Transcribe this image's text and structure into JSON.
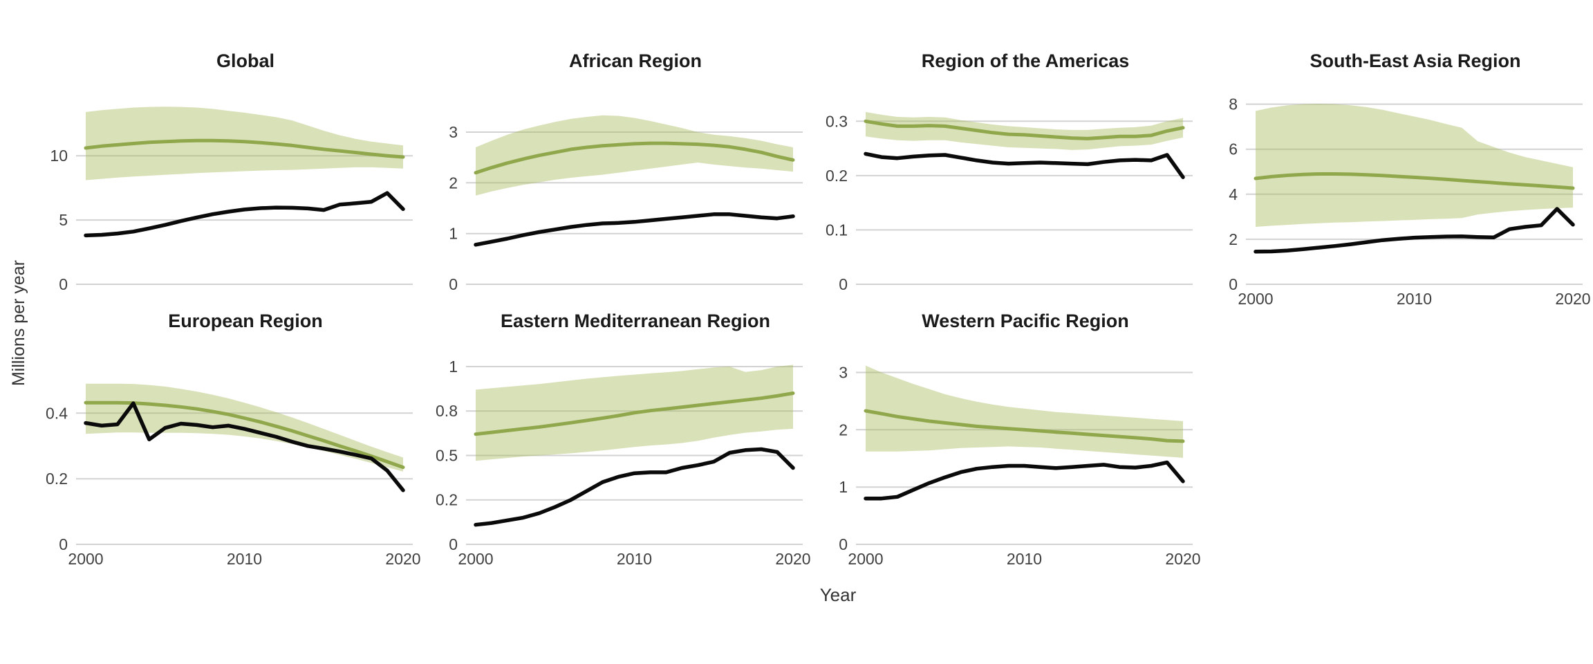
{
  "figure": {
    "ylabel": "Millions per year",
    "xlabel": "Year"
  },
  "colors": {
    "estimate_line": "#90a74c",
    "confidence_band": "rgba(164,184,87,0.42)",
    "observed_line": "#0a0a0a",
    "gridline": "#d2d2d2",
    "title_text": "#1a1a1a",
    "tick_text": "#404040"
  },
  "chart_data": {
    "type": "line",
    "description": "Faceted time-series: green line = estimated value with shaded confidence band (ci_low/ci_high), black line = observed value, 2000-2020, millions per year",
    "x": [
      2000,
      2001,
      2002,
      2003,
      2004,
      2005,
      2006,
      2007,
      2008,
      2009,
      2010,
      2011,
      2012,
      2013,
      2014,
      2015,
      2016,
      2017,
      2018,
      2019,
      2020
    ],
    "xticks": [
      2000,
      2010,
      2020
    ],
    "xlabel": "Year",
    "ylabel": "Millions per year",
    "grid": "horizontal-major-only",
    "legend": "none",
    "panels": [
      {
        "title": "Global",
        "ylim": [
          0,
          14.8
        ],
        "yticks": [
          {
            "v": 0,
            "label": "0"
          },
          {
            "v": 5,
            "label": "5"
          },
          {
            "v": 10,
            "label": "10"
          }
        ],
        "show_x_labels": false,
        "series": {
          "estimate": [
            10.6,
            10.75,
            10.85,
            10.95,
            11.05,
            11.1,
            11.15,
            11.18,
            11.18,
            11.15,
            11.1,
            11.02,
            10.92,
            10.8,
            10.65,
            10.5,
            10.38,
            10.25,
            10.12,
            10.0,
            9.9
          ],
          "ci_high": [
            13.4,
            13.55,
            13.65,
            13.75,
            13.8,
            13.82,
            13.8,
            13.75,
            13.65,
            13.5,
            13.35,
            13.18,
            13.0,
            12.75,
            12.35,
            11.95,
            11.6,
            11.32,
            11.1,
            10.95,
            10.8
          ],
          "ci_low": [
            8.1,
            8.2,
            8.3,
            8.38,
            8.45,
            8.52,
            8.58,
            8.65,
            8.7,
            8.75,
            8.8,
            8.85,
            8.88,
            8.9,
            8.95,
            9.0,
            9.05,
            9.1,
            9.1,
            9.05,
            9.0
          ],
          "observed": [
            3.8,
            3.85,
            3.95,
            4.1,
            4.35,
            4.62,
            4.92,
            5.2,
            5.45,
            5.65,
            5.82,
            5.92,
            5.97,
            5.95,
            5.9,
            5.78,
            6.2,
            6.3,
            6.42,
            7.1,
            5.85
          ]
        }
      },
      {
        "title": "African Region",
        "ylim": [
          0,
          3.75
        ],
        "yticks": [
          {
            "v": 0,
            "label": "0"
          },
          {
            "v": 1,
            "label": "1"
          },
          {
            "v": 2,
            "label": "2"
          },
          {
            "v": 3,
            "label": "3"
          }
        ],
        "show_x_labels": false,
        "series": {
          "estimate": [
            2.2,
            2.3,
            2.39,
            2.47,
            2.54,
            2.6,
            2.66,
            2.7,
            2.73,
            2.75,
            2.77,
            2.78,
            2.78,
            2.77,
            2.76,
            2.74,
            2.71,
            2.66,
            2.6,
            2.52,
            2.45
          ],
          "ci_high": [
            2.7,
            2.83,
            2.95,
            3.05,
            3.13,
            3.2,
            3.26,
            3.3,
            3.33,
            3.32,
            3.28,
            3.22,
            3.15,
            3.08,
            3.0,
            2.95,
            2.92,
            2.88,
            2.83,
            2.76,
            2.7
          ],
          "ci_low": [
            1.75,
            1.83,
            1.9,
            1.96,
            2.01,
            2.06,
            2.1,
            2.13,
            2.16,
            2.2,
            2.24,
            2.28,
            2.32,
            2.36,
            2.4,
            2.36,
            2.33,
            2.3,
            2.28,
            2.25,
            2.22
          ],
          "observed": [
            0.78,
            0.84,
            0.9,
            0.97,
            1.03,
            1.08,
            1.13,
            1.17,
            1.2,
            1.21,
            1.23,
            1.26,
            1.29,
            1.32,
            1.35,
            1.38,
            1.38,
            1.35,
            1.32,
            1.3,
            1.34
          ]
        }
      },
      {
        "title": "Region of the Americas",
        "ylim": [
          0,
          0.35
        ],
        "yticks": [
          {
            "v": 0,
            "label": "0"
          },
          {
            "v": 0.1,
            "label": "0.1"
          },
          {
            "v": 0.2,
            "label": "0.2"
          },
          {
            "v": 0.3,
            "label": "0.3"
          }
        ],
        "show_x_labels": false,
        "series": {
          "estimate": [
            0.3,
            0.295,
            0.291,
            0.291,
            0.292,
            0.291,
            0.287,
            0.283,
            0.279,
            0.276,
            0.275,
            0.273,
            0.271,
            0.269,
            0.268,
            0.27,
            0.272,
            0.272,
            0.274,
            0.282,
            0.288
          ],
          "ci_high": [
            0.317,
            0.312,
            0.308,
            0.307,
            0.308,
            0.307,
            0.302,
            0.298,
            0.294,
            0.291,
            0.289,
            0.287,
            0.285,
            0.284,
            0.284,
            0.286,
            0.288,
            0.289,
            0.292,
            0.3,
            0.306
          ],
          "ci_low": [
            0.272,
            0.268,
            0.265,
            0.264,
            0.265,
            0.265,
            0.261,
            0.258,
            0.255,
            0.252,
            0.251,
            0.25,
            0.249,
            0.247,
            0.248,
            0.251,
            0.254,
            0.255,
            0.257,
            0.264,
            0.27
          ],
          "observed": [
            0.24,
            0.234,
            0.232,
            0.235,
            0.237,
            0.238,
            0.233,
            0.228,
            0.224,
            0.222,
            0.223,
            0.224,
            0.223,
            0.222,
            0.221,
            0.225,
            0.228,
            0.229,
            0.228,
            0.238,
            0.197
          ]
        }
      },
      {
        "title": "South-East Asia Region",
        "ylim": [
          0,
          8.45
        ],
        "yticks": [
          {
            "v": 0,
            "label": "0"
          },
          {
            "v": 2,
            "label": "2"
          },
          {
            "v": 4,
            "label": "4"
          },
          {
            "v": 6,
            "label": "6"
          },
          {
            "v": 8,
            "label": "8"
          }
        ],
        "show_x_labels": true,
        "series": {
          "estimate": [
            4.7,
            4.78,
            4.84,
            4.88,
            4.9,
            4.9,
            4.89,
            4.86,
            4.83,
            4.79,
            4.75,
            4.71,
            4.66,
            4.61,
            4.56,
            4.51,
            4.46,
            4.42,
            4.37,
            4.32,
            4.27
          ],
          "ci_high": [
            7.7,
            7.85,
            7.95,
            8.0,
            8.02,
            8.0,
            7.95,
            7.87,
            7.75,
            7.6,
            7.45,
            7.3,
            7.12,
            6.95,
            6.35,
            6.1,
            5.85,
            5.65,
            5.5,
            5.35,
            5.2
          ],
          "ci_low": [
            2.55,
            2.6,
            2.64,
            2.68,
            2.71,
            2.74,
            2.76,
            2.79,
            2.81,
            2.84,
            2.86,
            2.89,
            2.91,
            2.94,
            3.1,
            3.18,
            3.25,
            3.3,
            3.34,
            3.38,
            3.4
          ],
          "observed": [
            1.45,
            1.46,
            1.5,
            1.56,
            1.63,
            1.7,
            1.78,
            1.87,
            1.96,
            2.02,
            2.07,
            2.1,
            2.12,
            2.13,
            2.1,
            2.08,
            2.45,
            2.55,
            2.62,
            3.35,
            2.65
          ]
        }
      },
      {
        "title": "European Region",
        "ylim": [
          0,
          0.58
        ],
        "yticks": [
          {
            "v": 0,
            "label": "0"
          },
          {
            "v": 0.2,
            "label": "0.2"
          },
          {
            "v": 0.4,
            "label": "0.4"
          }
        ],
        "show_x_labels": true,
        "series": {
          "estimate": [
            0.432,
            0.432,
            0.432,
            0.431,
            0.428,
            0.424,
            0.419,
            0.413,
            0.405,
            0.396,
            0.385,
            0.373,
            0.36,
            0.346,
            0.331,
            0.316,
            0.3,
            0.285,
            0.269,
            0.252,
            0.235
          ],
          "ci_high": [
            0.49,
            0.49,
            0.49,
            0.489,
            0.486,
            0.481,
            0.474,
            0.466,
            0.456,
            0.445,
            0.432,
            0.418,
            0.403,
            0.387,
            0.37,
            0.352,
            0.334,
            0.316,
            0.298,
            0.281,
            0.265
          ],
          "ci_low": [
            0.337,
            0.339,
            0.341,
            0.341,
            0.34,
            0.34,
            0.34,
            0.339,
            0.337,
            0.334,
            0.329,
            0.323,
            0.315,
            0.306,
            0.296,
            0.285,
            0.273,
            0.261,
            0.248,
            0.235,
            0.222
          ],
          "observed": [
            0.37,
            0.362,
            0.366,
            0.43,
            0.32,
            0.355,
            0.368,
            0.364,
            0.357,
            0.362,
            0.352,
            0.34,
            0.328,
            0.313,
            0.3,
            0.292,
            0.283,
            0.273,
            0.262,
            0.225,
            0.165
          ]
        }
      },
      {
        "title": "Eastern Mediterranean Region",
        "ylim": [
          0,
          1.07
        ],
        "yticks": [
          {
            "v": 0,
            "label": "0"
          },
          {
            "v": 0.25,
            "label": "0.2"
          },
          {
            "v": 0.5,
            "label": "0.5"
          },
          {
            "v": 0.75,
            "label": "0.8"
          },
          {
            "v": 1,
            "label": "1"
          }
        ],
        "show_x_labels": true,
        "series": {
          "estimate": [
            0.62,
            0.63,
            0.64,
            0.65,
            0.66,
            0.672,
            0.684,
            0.697,
            0.71,
            0.724,
            0.74,
            0.752,
            0.762,
            0.772,
            0.782,
            0.792,
            0.802,
            0.812,
            0.822,
            0.835,
            0.85
          ],
          "ci_high": [
            0.87,
            0.878,
            0.886,
            0.894,
            0.902,
            0.912,
            0.922,
            0.932,
            0.94,
            0.948,
            0.955,
            0.962,
            0.968,
            0.975,
            0.985,
            0.995,
            1.0,
            0.97,
            0.98,
            1.0,
            1.01
          ],
          "ci_low": [
            0.47,
            0.478,
            0.486,
            0.494,
            0.5,
            0.506,
            0.512,
            0.52,
            0.528,
            0.538,
            0.548,
            0.556,
            0.562,
            0.57,
            0.582,
            0.6,
            0.615,
            0.628,
            0.635,
            0.645,
            0.65
          ],
          "observed": [
            0.11,
            0.12,
            0.135,
            0.15,
            0.175,
            0.21,
            0.25,
            0.3,
            0.35,
            0.38,
            0.4,
            0.405,
            0.405,
            0.43,
            0.445,
            0.465,
            0.515,
            0.53,
            0.535,
            0.52,
            0.43
          ]
        }
      },
      {
        "title": "Western Pacific Region",
        "ylim": [
          0,
          3.32
        ],
        "yticks": [
          {
            "v": 0,
            "label": "0"
          },
          {
            "v": 1,
            "label": "1"
          },
          {
            "v": 2,
            "label": "2"
          },
          {
            "v": 3,
            "label": "3"
          }
        ],
        "show_x_labels": true,
        "series": {
          "estimate": [
            2.33,
            2.28,
            2.23,
            2.19,
            2.15,
            2.12,
            2.09,
            2.06,
            2.04,
            2.02,
            2.0,
            1.98,
            1.96,
            1.94,
            1.92,
            1.9,
            1.88,
            1.86,
            1.84,
            1.81,
            1.8
          ],
          "ci_high": [
            3.12,
            3.0,
            2.9,
            2.8,
            2.71,
            2.62,
            2.55,
            2.49,
            2.44,
            2.4,
            2.37,
            2.34,
            2.31,
            2.29,
            2.27,
            2.25,
            2.23,
            2.21,
            2.19,
            2.17,
            2.15
          ],
          "ci_low": [
            1.62,
            1.62,
            1.62,
            1.63,
            1.64,
            1.66,
            1.68,
            1.69,
            1.7,
            1.71,
            1.7,
            1.69,
            1.67,
            1.65,
            1.63,
            1.61,
            1.59,
            1.57,
            1.55,
            1.53,
            1.51
          ],
          "observed": [
            0.8,
            0.8,
            0.83,
            0.95,
            1.07,
            1.17,
            1.26,
            1.32,
            1.35,
            1.37,
            1.37,
            1.35,
            1.33,
            1.35,
            1.37,
            1.39,
            1.35,
            1.34,
            1.37,
            1.43,
            1.1
          ]
        }
      }
    ]
  }
}
